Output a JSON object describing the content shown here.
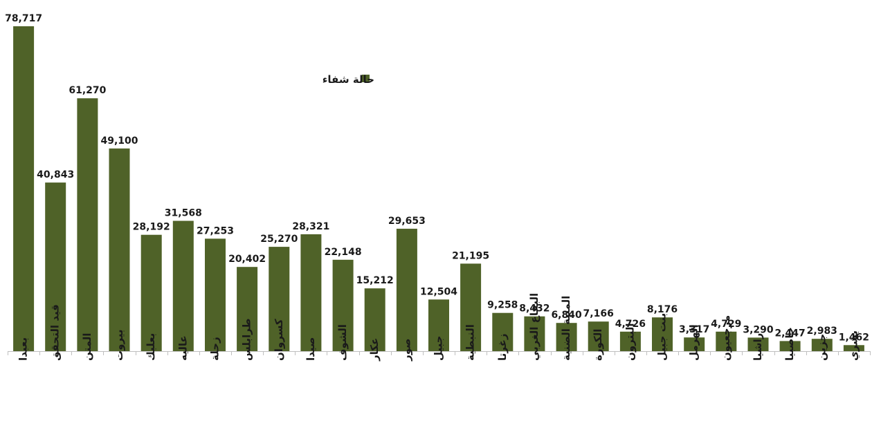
{
  "chart_data": {
    "type": "bar",
    "categories": [
      "بعبدا",
      "قيد التحقق",
      "المتن",
      "بيروت",
      "بعلبك",
      "عاليه",
      "زحلة",
      "طرابلس",
      "كسروان",
      "صيدا",
      "الشوف",
      "عكار",
      "صور",
      "جبيل",
      "النبطية",
      "زغرتا",
      "البقاع الغربي",
      "المنية الضنية",
      "الكورة",
      "البترون",
      "بنت جبيل",
      "الهرمل",
      "مرجعيون",
      "راشيا",
      "حاصبيا",
      "جزين",
      "بشري"
    ],
    "series": [
      {
        "name": "حالة شفاء",
        "color": "#4f6228",
        "values": [
          78717,
          40843,
          61270,
          49100,
          28192,
          31568,
          27253,
          20402,
          25270,
          28321,
          22148,
          15212,
          29653,
          12504,
          21195,
          9258,
          8432,
          6840,
          7166,
          4726,
          8176,
          3317,
          4729,
          3290,
          2447,
          2983,
          1462
        ]
      }
    ],
    "data_labels": [
      "78,717",
      "40,843",
      "61,270",
      "49,100",
      "28,192",
      "31,568",
      "27,253",
      "20,402",
      "25,270",
      "28,321",
      "22,148",
      "15,212",
      "29,653",
      "12,504",
      "21,195",
      "9,258",
      "8,432",
      "6,840",
      "7,166",
      "4,726",
      "8,176",
      "3,317",
      "4,729",
      "3,290",
      "2,447",
      "2,983",
      "1,462"
    ],
    "ylim": [
      0,
      80000
    ],
    "grid": false,
    "legend": {
      "label": "حالة شفاء",
      "placement": "top-center"
    }
  }
}
